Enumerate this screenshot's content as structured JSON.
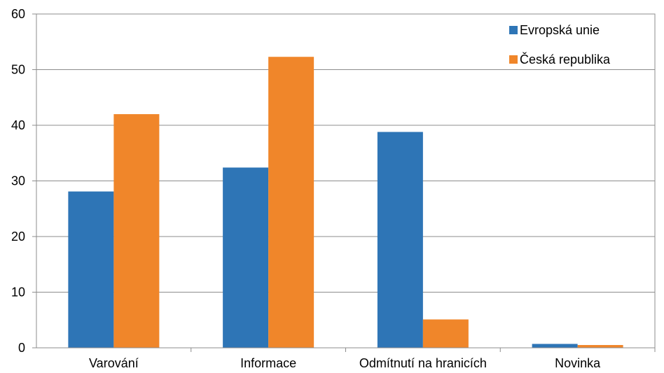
{
  "chart_data": {
    "type": "bar",
    "title": "",
    "xlabel": "",
    "ylabel": "",
    "ylim": [
      0,
      60
    ],
    "yticks": [
      0,
      10,
      20,
      30,
      40,
      50,
      60
    ],
    "grid": true,
    "legend_position": "top-right",
    "categories": [
      "Varování",
      "Informace",
      "Odmítnutí na hranicích",
      "Novinka"
    ],
    "series": [
      {
        "name": "Evropská unie",
        "color": "#2e75b6",
        "values": [
          28.1,
          32.4,
          38.8,
          0.7
        ]
      },
      {
        "name": "Česká republika",
        "color": "#f0862a",
        "values": [
          42.0,
          52.3,
          5.1,
          0.5
        ]
      }
    ]
  }
}
